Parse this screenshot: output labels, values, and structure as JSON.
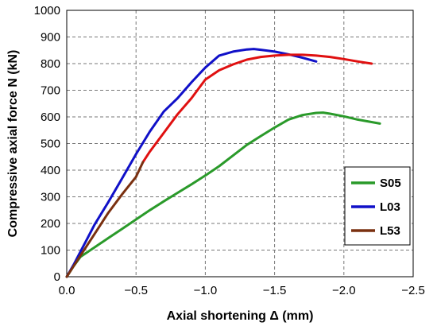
{
  "chart_data": {
    "type": "line",
    "xlabel": "Axial shortening  Δ (mm)",
    "ylabel": "Compressive axial force N (kN)",
    "xlim": [
      0.0,
      -2.5
    ],
    "ylim": [
      0,
      1000
    ],
    "x_ticks": [
      "0.0",
      "−0.5",
      "−1.0",
      "−1.5",
      "−2.0",
      "−2.5"
    ],
    "y_ticks": [
      "0",
      "100",
      "200",
      "300",
      "400",
      "500",
      "600",
      "700",
      "800",
      "900",
      "1000"
    ],
    "x_tick_values": [
      0,
      -0.5,
      -1.0,
      -1.5,
      -2.0,
      -2.5
    ],
    "y_tick_values": [
      0,
      100,
      200,
      300,
      400,
      500,
      600,
      700,
      800,
      900,
      1000
    ],
    "grid": true,
    "legend_position": "right",
    "series": [
      {
        "name": "S05",
        "color": "#2a9a2a",
        "x": [
          0,
          -0.05,
          -0.1,
          -0.2,
          -0.3,
          -0.4,
          -0.5,
          -0.6,
          -0.7,
          -0.8,
          -0.9,
          -1.0,
          -1.1,
          -1.2,
          -1.3,
          -1.4,
          -1.5,
          -1.6,
          -1.7,
          -1.8,
          -1.85,
          -1.9,
          -2.0,
          -2.1,
          -2.26
        ],
        "y": [
          0,
          40,
          75,
          110,
          145,
          180,
          215,
          250,
          283,
          315,
          347,
          380,
          415,
          455,
          495,
          528,
          560,
          590,
          607,
          615,
          616,
          612,
          602,
          590,
          575
        ]
      },
      {
        "name": "L03",
        "color": "#1010c8",
        "x": [
          0,
          -0.05,
          -0.1,
          -0.15,
          -0.2,
          -0.3,
          -0.4,
          -0.5,
          -0.6,
          -0.7,
          -0.8,
          -0.9,
          -1.0,
          -1.1,
          -1.2,
          -1.3,
          -1.35,
          -1.4,
          -1.5,
          -1.6,
          -1.7,
          -1.8
        ],
        "y": [
          0,
          45,
          95,
          145,
          195,
          280,
          370,
          460,
          545,
          620,
          670,
          730,
          785,
          830,
          845,
          853,
          855,
          852,
          845,
          835,
          822,
          808
        ]
      },
      {
        "name": "L53",
        "color": "#e01010",
        "x": [
          -0.55,
          -0.6,
          -0.7,
          -0.8,
          -0.9,
          -1.0,
          -1.1,
          -1.2,
          -1.3,
          -1.4,
          -1.5,
          -1.6,
          -1.7,
          -1.8,
          -1.9,
          -2.0,
          -2.1,
          -2.2
        ],
        "y": [
          430,
          470,
          540,
          610,
          670,
          740,
          775,
          797,
          815,
          825,
          830,
          833,
          833,
          830,
          825,
          817,
          808,
          800
        ]
      },
      {
        "name": "L53",
        "color": "#7a3010",
        "x": [
          0,
          -0.05,
          -0.1,
          -0.2,
          -0.3,
          -0.4,
          -0.5,
          -0.55
        ],
        "y": [
          0,
          40,
          80,
          160,
          240,
          310,
          375,
          430
        ]
      }
    ]
  }
}
